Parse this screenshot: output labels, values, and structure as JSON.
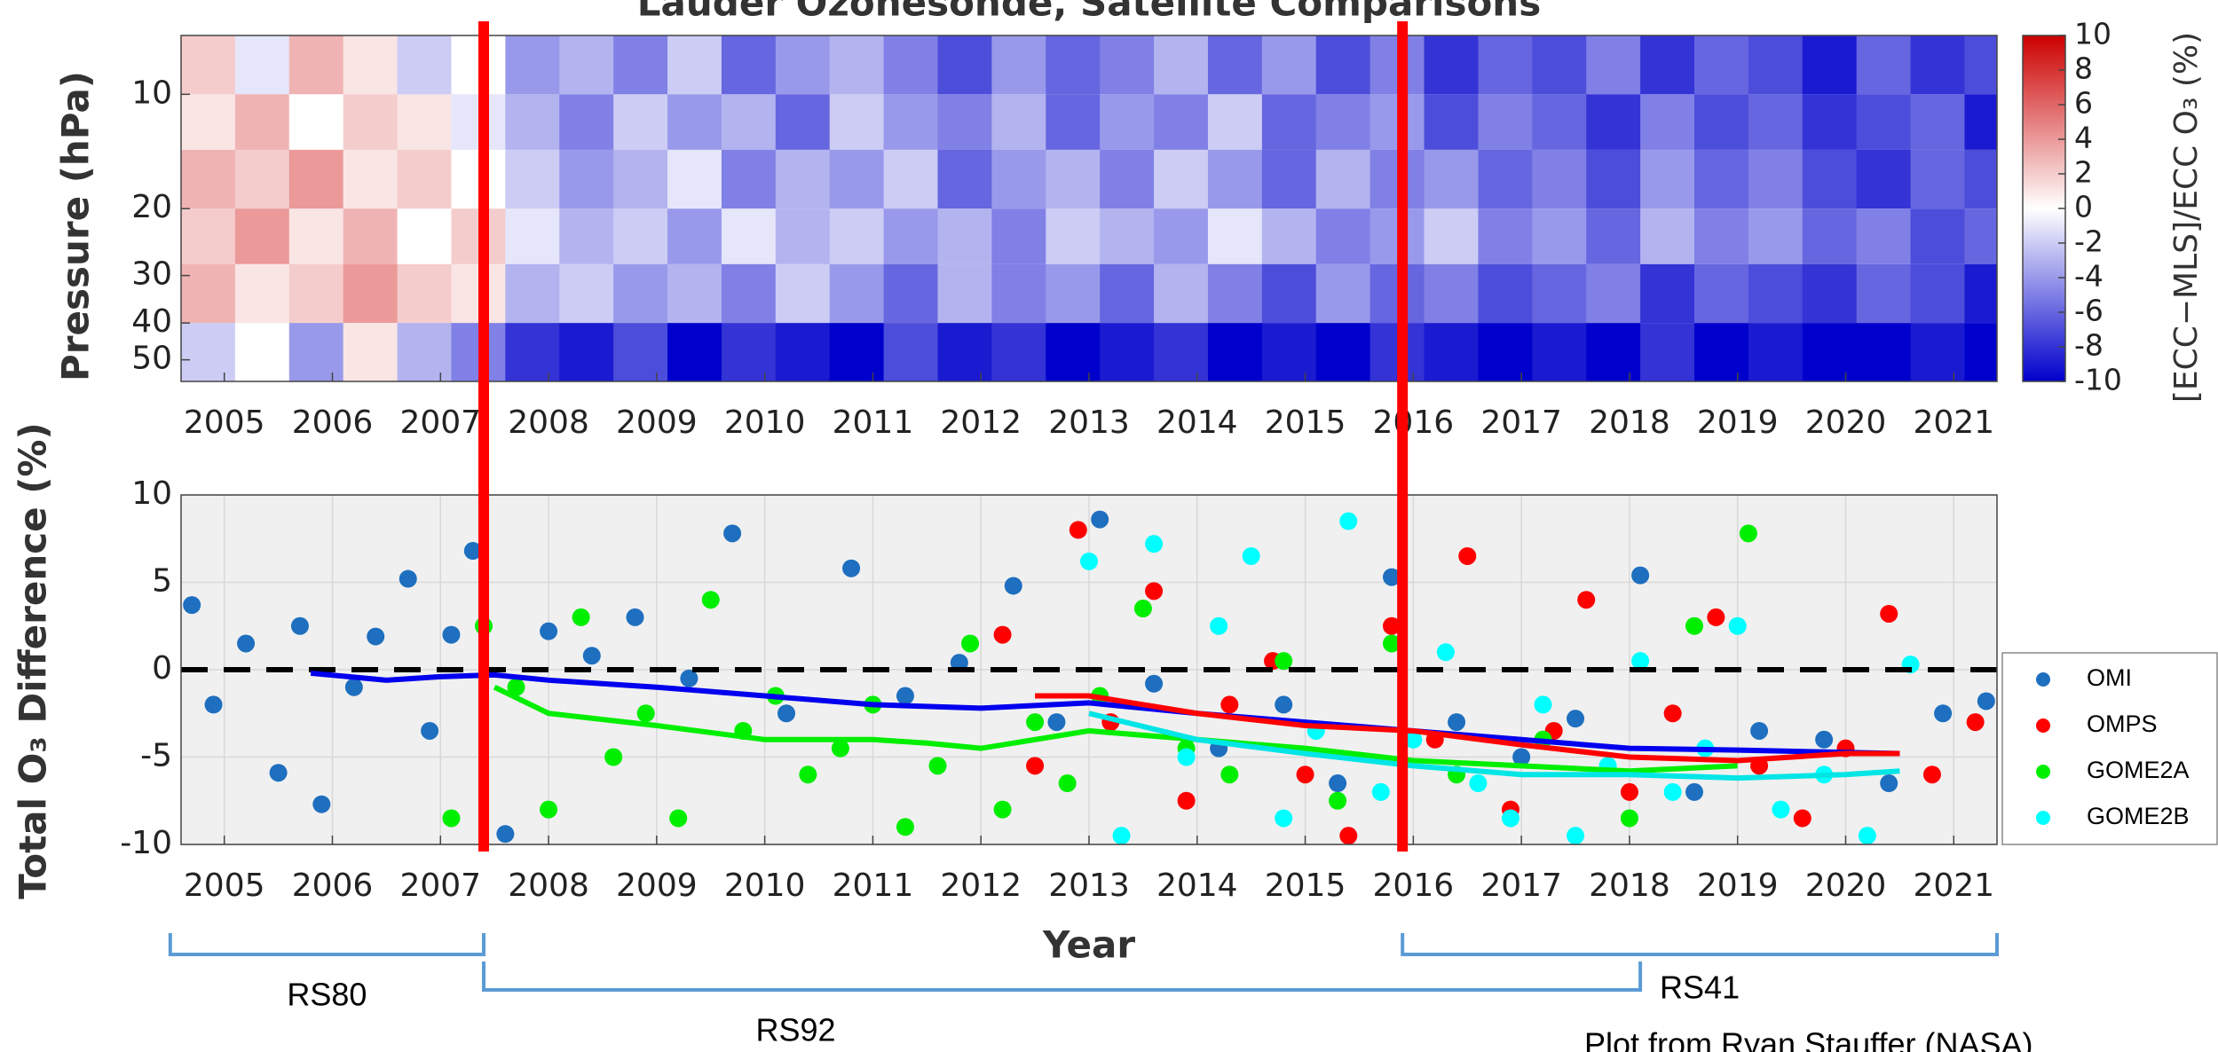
{
  "title": "Lauder Ozonesonde, Satellite Comparisons",
  "credit": "Plot from Ryan Stauffer (NASA)",
  "divider_lines": [
    2007.4,
    2015.9
  ],
  "divider_color": "#ff0000",
  "instrument_spans": [
    {
      "label": "RS80",
      "start": 2004.5,
      "end": 2007.4
    },
    {
      "label": "RS92",
      "start": 2007.4,
      "end": 2018.1
    },
    {
      "label": "RS41",
      "start": 2015.9,
      "end": 2021.4
    }
  ],
  "span_color": "#5b9bd5",
  "chart_data": [
    {
      "type": "heatmap",
      "ylabel": "Pressure (hPa)",
      "xlim": [
        2004.6,
        2021.4
      ],
      "xticks": [
        2005,
        2006,
        2007,
        2008,
        2009,
        2010,
        2011,
        2012,
        2013,
        2014,
        2015,
        2016,
        2017,
        2018,
        2019,
        2020,
        2021
      ],
      "ylim": [
        7,
        57
      ],
      "yticks": [
        10,
        20,
        30,
        40,
        50
      ],
      "log_y": true,
      "y_reversed": true,
      "background": "#f0f0f0",
      "x_edges": [
        2004.6,
        2005.1,
        2005.6,
        2006.1,
        2006.6,
        2007.1,
        2007.6,
        2008.1,
        2008.6,
        2009.1,
        2009.6,
        2010.1,
        2010.6,
        2011.1,
        2011.6,
        2012.1,
        2012.6,
        2013.1,
        2013.6,
        2014.1,
        2014.6,
        2015.1,
        2015.6,
        2016.1,
        2016.6,
        2017.1,
        2017.6,
        2018.1,
        2018.6,
        2019.1,
        2019.6,
        2020.1,
        2020.6,
        2021.1,
        2021.4
      ],
      "y_edges": [
        7,
        10,
        14,
        20,
        28,
        40,
        57
      ],
      "z": [
        [
          2,
          -1,
          3,
          1,
          -2,
          0,
          -4,
          -3,
          -5,
          -2,
          -6,
          -4,
          -3,
          -5,
          -7,
          -4,
          -6,
          -5,
          -3,
          -6,
          -4,
          -7,
          -5,
          -8,
          -6,
          -7,
          -5,
          -8,
          -6,
          -7,
          -9,
          -6,
          -8,
          -7
        ],
        [
          1,
          3,
          0,
          2,
          1,
          -1,
          -3,
          -5,
          -2,
          -4,
          -3,
          -6,
          -2,
          -4,
          -5,
          -3,
          -6,
          -4,
          -5,
          -2,
          -6,
          -5,
          -4,
          -7,
          -5,
          -6,
          -8,
          -5,
          -7,
          -6,
          -8,
          -7,
          -6,
          -9
        ],
        [
          3,
          2,
          4,
          1,
          2,
          0,
          -2,
          -4,
          -3,
          -1,
          -5,
          -3,
          -4,
          -2,
          -6,
          -4,
          -3,
          -5,
          -2,
          -4,
          -6,
          -3,
          -5,
          -4,
          -6,
          -5,
          -7,
          -4,
          -6,
          -5,
          -7,
          -8,
          -6,
          -7
        ],
        [
          2,
          4,
          1,
          3,
          0,
          2,
          -1,
          -3,
          -2,
          -4,
          -1,
          -3,
          -2,
          -4,
          -3,
          -5,
          -2,
          -3,
          -4,
          -1,
          -3,
          -5,
          -4,
          -2,
          -5,
          -4,
          -6,
          -3,
          -5,
          -4,
          -6,
          -5,
          -7,
          -6
        ],
        [
          3,
          1,
          2,
          4,
          2,
          1,
          -3,
          -2,
          -4,
          -3,
          -5,
          -2,
          -4,
          -6,
          -3,
          -5,
          -4,
          -6,
          -3,
          -5,
          -7,
          -4,
          -6,
          -5,
          -7,
          -6,
          -5,
          -8,
          -6,
          -7,
          -8,
          -6,
          -7,
          -9
        ],
        [
          -2,
          0,
          -4,
          1,
          -3,
          -5,
          -8,
          -9,
          -7,
          -10,
          -8,
          -9,
          -10,
          -7,
          -9,
          -8,
          -10,
          -9,
          -8,
          -10,
          -9,
          -10,
          -8,
          -9,
          -10,
          -9,
          -10,
          -8,
          -10,
          -9,
          -10,
          -10,
          -9,
          -10
        ]
      ],
      "clim": [
        -10,
        10
      ],
      "colormap": [
        "#0000cc",
        "#ffffff",
        "#cc0000"
      ],
      "colorbar_label": "[ECC−MLS]/ECC O₃ (%)",
      "colorbar_ticks": [
        -10,
        -8,
        -6,
        -4,
        -2,
        0,
        2,
        4,
        6,
        8,
        10
      ]
    },
    {
      "type": "scatter",
      "ylabel": "Total O₃ Difference (%)",
      "xlabel": "Year",
      "xlim": [
        2004.6,
        2021.4
      ],
      "xticks": [
        2005,
        2006,
        2007,
        2008,
        2009,
        2010,
        2011,
        2012,
        2013,
        2014,
        2015,
        2016,
        2017,
        2018,
        2019,
        2020,
        2021
      ],
      "ylim": [
        -10,
        10
      ],
      "yticks": [
        -10,
        -5,
        0,
        5,
        10
      ],
      "grid": true,
      "zero_line": 0,
      "legend": "right",
      "background": "#f0f0f0",
      "series": [
        {
          "name": "OMI",
          "color": "#1e6fbf",
          "trend_color": "#0000ee",
          "x": [
            2004.7,
            2004.9,
            2005.2,
            2005.5,
            2005.7,
            2005.9,
            2006.2,
            2006.4,
            2006.7,
            2006.9,
            2007.1,
            2007.3,
            2007.6,
            2008.0,
            2008.4,
            2008.8,
            2009.3,
            2009.7,
            2010.2,
            2010.8,
            2011.3,
            2011.8,
            2012.3,
            2012.7,
            2013.1,
            2013.6,
            2014.2,
            2014.8,
            2015.3,
            2015.8,
            2016.4,
            2017.0,
            2017.5,
            2018.1,
            2018.6,
            2019.2,
            2019.8,
            2020.4,
            2020.9,
            2021.3
          ],
          "values": [
            3.7,
            -2.0,
            1.5,
            -5.9,
            2.5,
            -7.7,
            -1.0,
            1.9,
            5.2,
            -3.5,
            2.0,
            6.8,
            -9.4,
            2.2,
            0.8,
            3.0,
            -0.5,
            7.8,
            -2.5,
            5.8,
            -1.5,
            0.4,
            4.8,
            -3.0,
            8.6,
            -0.8,
            -4.5,
            -2.0,
            -6.5,
            5.3,
            -3.0,
            -5.0,
            -2.8,
            5.4,
            -7.0,
            -3.5,
            -4.0,
            -6.5,
            -2.5,
            -1.8
          ],
          "trend_x": [
            2005.8,
            2006.5,
            2007.0,
            2007.5,
            2008,
            2009,
            2010,
            2011,
            2012,
            2013,
            2014,
            2015,
            2016,
            2017,
            2018,
            2019,
            2020.5
          ],
          "trend_values": [
            -0.2,
            -0.6,
            -0.4,
            -0.3,
            -0.6,
            -1.0,
            -1.5,
            -2.0,
            -2.2,
            -1.9,
            -2.5,
            -3.0,
            -3.5,
            -4.0,
            -4.5,
            -4.6,
            -4.8
          ]
        },
        {
          "name": "OMPS",
          "color": "#ff0000",
          "trend_color": "#ff0000",
          "x": [
            2012.2,
            2012.5,
            2012.9,
            2013.2,
            2013.6,
            2013.9,
            2014.3,
            2014.7,
            2015.0,
            2015.4,
            2015.8,
            2016.2,
            2016.5,
            2016.9,
            2017.3,
            2017.6,
            2018.0,
            2018.4,
            2018.8,
            2019.2,
            2019.6,
            2020.0,
            2020.4,
            2020.8,
            2021.2
          ],
          "values": [
            2.0,
            -5.5,
            8.0,
            -3.0,
            4.5,
            -7.5,
            -2.0,
            0.5,
            -6.0,
            -9.5,
            2.5,
            -4.0,
            6.5,
            -8.0,
            -3.5,
            4.0,
            -7.0,
            -2.5,
            3.0,
            -5.5,
            -8.5,
            -4.5,
            3.2,
            -6.0,
            -3.0
          ],
          "trend_x": [
            2012.5,
            2013,
            2014,
            2015,
            2016,
            2017,
            2018,
            2019,
            2020,
            2020.5
          ],
          "trend_values": [
            -1.5,
            -1.5,
            -2.5,
            -3.2,
            -3.5,
            -4.3,
            -5.0,
            -5.2,
            -4.8,
            -4.8
          ]
        },
        {
          "name": "GOME2A",
          "color": "#00ee00",
          "trend_color": "#00ee00",
          "x": [
            2007.1,
            2007.4,
            2007.7,
            2008.0,
            2008.3,
            2008.6,
            2008.9,
            2009.2,
            2009.5,
            2009.8,
            2010.1,
            2010.4,
            2010.7,
            2011.0,
            2011.3,
            2011.6,
            2011.9,
            2012.2,
            2012.5,
            2012.8,
            2013.1,
            2013.5,
            2013.9,
            2014.3,
            2014.8,
            2015.3,
            2015.8,
            2016.4,
            2017.2,
            2018.0,
            2018.6,
            2019.1
          ],
          "values": [
            -8.5,
            2.5,
            -1.0,
            -8.0,
            3.0,
            -5.0,
            -2.5,
            -8.5,
            4.0,
            -3.5,
            -1.5,
            -6.0,
            -4.5,
            -2.0,
            -9.0,
            -5.5,
            1.5,
            -8.0,
            -3.0,
            -6.5,
            -1.5,
            3.5,
            -4.5,
            -6.0,
            0.5,
            -7.5,
            1.5,
            -6.0,
            -4.0,
            -8.5,
            2.5,
            7.8
          ],
          "trend_x": [
            2007.5,
            2008,
            2009,
            2010,
            2011,
            2011.5,
            2012,
            2013,
            2014,
            2015,
            2016,
            2017,
            2018,
            2019
          ],
          "trend_values": [
            -1.0,
            -2.5,
            -3.2,
            -4.0,
            -4.0,
            -4.2,
            -4.5,
            -3.5,
            -4.0,
            -4.5,
            -5.2,
            -5.5,
            -5.8,
            -5.5
          ]
        },
        {
          "name": "GOME2B",
          "color": "#00ffff",
          "trend_color": "#00e5e5",
          "x": [
            2013.0,
            2013.3,
            2013.6,
            2013.9,
            2014.2,
            2014.5,
            2014.8,
            2015.1,
            2015.4,
            2015.7,
            2016.0,
            2016.3,
            2016.6,
            2016.9,
            2017.2,
            2017.5,
            2017.8,
            2018.1,
            2018.4,
            2018.7,
            2019.0,
            2019.4,
            2019.8,
            2020.2,
            2020.6
          ],
          "values": [
            6.2,
            -9.5,
            7.2,
            -5.0,
            2.5,
            6.5,
            -8.5,
            -3.5,
            8.5,
            -7.0,
            -4.0,
            1.0,
            -6.5,
            -8.5,
            -2.0,
            -9.5,
            -5.5,
            0.5,
            -7.0,
            -4.5,
            2.5,
            -8.0,
            -6.0,
            -9.5,
            0.3
          ],
          "trend_x": [
            2013,
            2014,
            2015,
            2016,
            2017,
            2018,
            2019,
            2020,
            2020.5
          ],
          "trend_values": [
            -2.5,
            -4.0,
            -4.8,
            -5.5,
            -6.0,
            -6.0,
            -6.2,
            -6.0,
            -5.8
          ]
        }
      ]
    }
  ]
}
